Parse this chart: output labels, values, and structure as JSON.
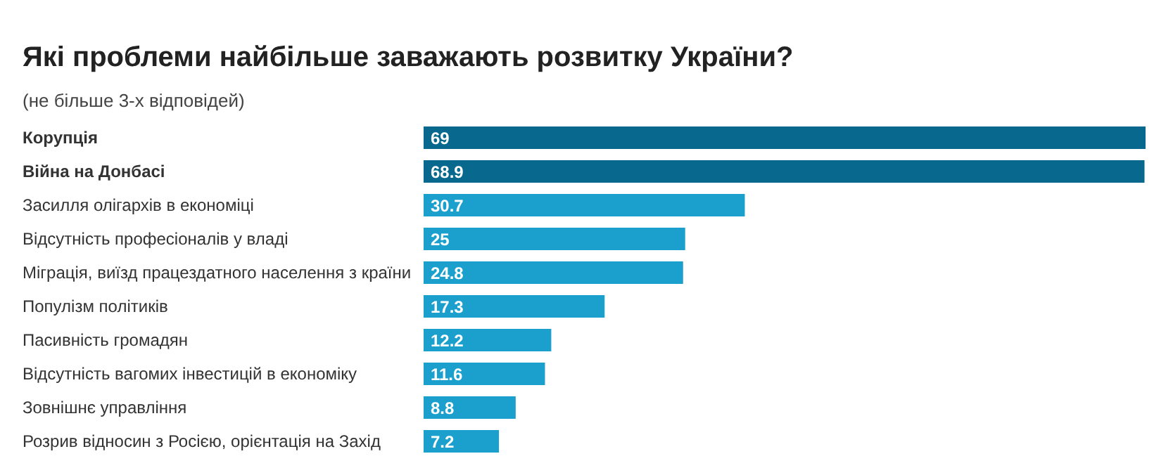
{
  "chart_data": {
    "type": "bar",
    "orientation": "horizontal",
    "tick_labels": false,
    "data_labels": true,
    "title": "Які проблеми найбільше заважають розвитку України?",
    "subtitle": "(не більше 3-х відповідей)",
    "categories": [
      "Корупція",
      "Війна на Донбасі",
      "Засилля олігархів в економіці",
      "Відсутність професіоналів у владі",
      "Міграція, виїзд працездатного населення з країни",
      "Популізм політиків",
      "Пасивність громадян",
      "Відсутність вагомих інвестицій в економіку",
      "Зовнішнє управління",
      "Розрив відносин з Росією, орієнтація на Захід"
    ],
    "values": [
      69,
      68.9,
      30.7,
      25,
      24.8,
      17.3,
      12.2,
      11.6,
      8.8,
      7.2
    ],
    "colors": [
      "#08688e",
      "#08688e",
      "#1ba0cd",
      "#1ba0cd",
      "#1ba0cd",
      "#1ba0cd",
      "#1ba0cd",
      "#1ba0cd",
      "#1ba0cd",
      "#1ba0cd"
    ]
  }
}
